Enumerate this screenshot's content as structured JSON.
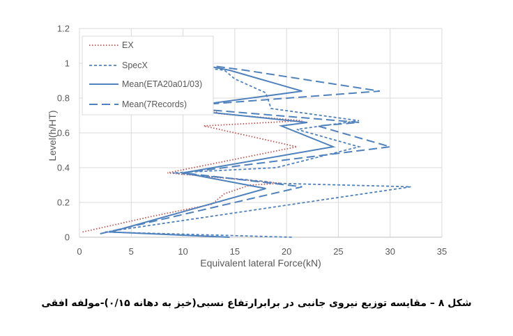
{
  "caption": "شکل ۸ – مقایسه توزیع نیروی جانبی در برابرارتفاع نسبی(خیز به دهانه ۰/۱۵)-مولفه افقی",
  "chart_data": {
    "type": "line",
    "xlabel": "Equivalent lateral Force(kN)",
    "ylabel": "Level(h/HT)",
    "xlim": [
      0,
      35
    ],
    "ylim": [
      0,
      1.2
    ],
    "xticks": [
      "0",
      "5",
      "10",
      "15",
      "20",
      "25",
      "30",
      "35"
    ],
    "yticks": [
      "0",
      "0.2",
      "0.4",
      "0.6",
      "0.8",
      "1",
      "1.2"
    ],
    "grid": true,
    "legend_position": "top-left",
    "series": [
      {
        "name": "EX",
        "color": "#c0504d",
        "style": "dotted",
        "points": [
          [
            0.3,
            0.03
          ],
          [
            7,
            0.12
          ],
          [
            12.8,
            0.19
          ],
          [
            14,
            0.25
          ],
          [
            16.5,
            0.3
          ],
          [
            19.5,
            0.31
          ],
          [
            8.5,
            0.37
          ],
          [
            21,
            0.52
          ],
          [
            12,
            0.64
          ],
          [
            21.5,
            0.67
          ],
          [
            13.5,
            0.71
          ],
          [
            12,
            0.76
          ],
          [
            12,
            0.91
          ],
          [
            10,
            0.96
          ],
          [
            8,
            0.99
          ]
        ]
      },
      {
        "name": "SpecX",
        "color": "#4f81bd",
        "style": "short-dash",
        "points": [
          [
            20.5,
            0.0
          ],
          [
            2.5,
            0.03
          ],
          [
            32,
            0.29
          ],
          [
            19,
            0.31
          ],
          [
            18,
            0.32
          ],
          [
            9,
            0.37
          ],
          [
            19,
            0.4
          ],
          [
            27,
            0.52
          ],
          [
            21,
            0.62
          ],
          [
            27,
            0.67
          ],
          [
            18.5,
            0.74
          ],
          [
            18,
            0.83
          ],
          [
            15,
            0.91
          ],
          [
            14,
            0.96
          ],
          [
            8.5,
            1.0
          ]
        ]
      },
      {
        "name": "Mean(ETA20a01/03)",
        "color": "#4f81bd",
        "style": "solid",
        "points": [
          [
            14.5,
            0.0
          ],
          [
            3,
            0.03
          ],
          [
            18,
            0.28
          ],
          [
            10,
            0.37
          ],
          [
            24.5,
            0.52
          ],
          [
            19.5,
            0.64
          ],
          [
            22,
            0.66
          ],
          [
            9,
            0.74
          ],
          [
            21.5,
            0.84
          ],
          [
            14.5,
            0.96
          ],
          [
            11,
            1.0
          ]
        ]
      },
      {
        "name": "Mean(7Records)",
        "color": "#4f81bd",
        "style": "long-dash",
        "points": [
          [
            2,
            0.02
          ],
          [
            21.5,
            0.29
          ],
          [
            10,
            0.37
          ],
          [
            30,
            0.52
          ],
          [
            23,
            0.64
          ],
          [
            27,
            0.66
          ],
          [
            9,
            0.75
          ],
          [
            29,
            0.84
          ],
          [
            16,
            0.96
          ],
          [
            11,
            1.0
          ]
        ]
      }
    ]
  }
}
